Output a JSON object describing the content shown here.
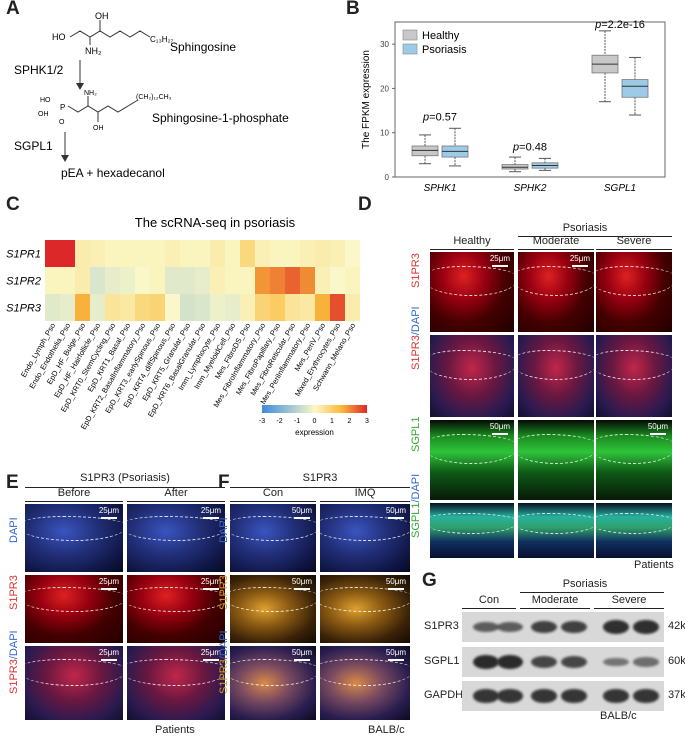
{
  "panels": {
    "A": "A",
    "B": "B",
    "C": "C",
    "D": "D",
    "E": "E",
    "F": "F",
    "G": "G"
  },
  "panelA": {
    "sphingosine": "Sphingosine",
    "enzyme1": "SPHK1/2",
    "s1p": "Sphingosine-1-phosphate",
    "enzyme2": "SGPL1",
    "products": "pEA + hexadecanol",
    "atoms": {
      "oh": "OH",
      "ho": "HO",
      "nh2": "NH₂",
      "c13": "C₁₃H₂₇",
      "ho2": "HO",
      "p": "P",
      "o": "O",
      "oh2": "OH",
      "nh2b": "NH₂",
      "c16": "(CH₂)₁₂CH₃",
      "oh3": "OH"
    }
  },
  "chart_data": {
    "type": "box",
    "title": "",
    "xlabel": "",
    "ylabel": "The FPKM expression",
    "ylim": [
      0,
      35
    ],
    "yticks": [
      "0",
      "10",
      "20",
      "30"
    ],
    "categories": [
      "SPHK1",
      "SPHK2",
      "SGPL1"
    ],
    "legend": [
      {
        "name": "Healthy",
        "color": "#c8c8c8"
      },
      {
        "name": "Psoriasis",
        "color": "#9ccbe8"
      }
    ],
    "series": [
      {
        "name": "Healthy",
        "color": "#c8c8c8",
        "boxes": [
          {
            "min": 3,
            "q1": 4.8,
            "median": 6,
            "q3": 7,
            "max": 9.5
          },
          {
            "min": 1.2,
            "q1": 1.8,
            "median": 2.2,
            "q3": 2.8,
            "max": 4.5
          },
          {
            "min": 17,
            "q1": 23.5,
            "median": 25.5,
            "q3": 27.5,
            "max": 33
          }
        ]
      },
      {
        "name": "Psoriasis",
        "color": "#9ccbe8",
        "boxes": [
          {
            "min": 2.5,
            "q1": 4.5,
            "median": 5.8,
            "q3": 7,
            "max": 11
          },
          {
            "min": 1.5,
            "q1": 2,
            "median": 2.6,
            "q3": 3.2,
            "max": 4.2
          },
          {
            "min": 14,
            "q1": 18,
            "median": 20.5,
            "q3": 22,
            "max": 27
          }
        ]
      }
    ],
    "pvalues": [
      "p=0.57",
      "p=0.48",
      "p=2.2e-16"
    ],
    "p_italic": "p",
    "p_rest": [
      "=0.57",
      "=0.48",
      "=2.2e-16"
    ]
  },
  "heatmap": {
    "title": "The scRNA-seq in psoriasis",
    "rows": [
      "S1PR1",
      "S1PR2",
      "S1PR3"
    ],
    "columns": [
      "Endo_Lymph_Pso",
      "Endo_Endothelia_Pso",
      "EpD_HF_Bulge_Pso",
      "EpD_HF_Hairfollicle_Pso",
      "EpD_KRT0_StemCycling_Pso",
      "EpD_KRT1_Basal_Pso",
      "EpD_KRT2_BasalInflammatory_Pso",
      "EpD_KRT3_earlySpinous_Pso",
      "EpD_KRT4_diffSpinous_Pso",
      "EpD_KRT5_Granular_Pso",
      "EpD_KRT6_BasalGranular_Pso",
      "Imm_Lymphocyte_Pso",
      "Imm_MyeloidCell_Pso",
      "Mes_FibroDS_Pso",
      "Mes_FibroInflammatory_Pso",
      "Mes_FibroPapillary_Pso",
      "Mes_FibroReticular_Pso",
      "Mes_PeriInflammatory_Pso",
      "Mes_PeriV_Pso",
      "Mixed_Erythrocytes_Pso",
      "Schwann_Melano_Pso"
    ],
    "values": [
      [
        3.0,
        3.4,
        0.3,
        0.2,
        0.1,
        0.1,
        0.1,
        0.1,
        0.2,
        0.1,
        0.1,
        0.3,
        0.1,
        0.8,
        0.2,
        0.1,
        0.1,
        0.2,
        0.3,
        0.2,
        0.0
      ],
      [
        0.1,
        0.1,
        0.3,
        -0.5,
        -0.3,
        -0.2,
        0.0,
        0.1,
        -0.4,
        -0.4,
        -0.3,
        0.2,
        0.1,
        0.1,
        1.9,
        2.1,
        2.4,
        2.0,
        0.2,
        0.0,
        0.1
      ],
      [
        -0.4,
        -0.3,
        1.6,
        -0.3,
        0.5,
        0.4,
        0.8,
        0.9,
        0.0,
        -0.6,
        -0.5,
        -0.2,
        -0.3,
        0.2,
        0.9,
        1.1,
        0.5,
        0.4,
        1.6,
        2.6,
        0.3
      ]
    ],
    "legend_title": "expression",
    "legend_ticks": [
      "-3",
      "-2",
      "-1",
      "0",
      "1",
      "2",
      "3"
    ]
  },
  "panelD": {
    "groups": {
      "healthy": "Healthy",
      "psoriasis": "Psoriasis",
      "moderate": "Moderate",
      "severe": "Severe"
    },
    "rowlabels": {
      "s1pr3": "S1PR3",
      "s1pr3_dapi_a": "S1PR3",
      "s1pr3_dapi_b": "/DAPI",
      "sgpl1": "SGPL1",
      "sgpl1_dapi_a": "SGPL1",
      "sgpl1_dapi_b": "/DAPI"
    },
    "scale25": "25μm",
    "scale50": "50μm",
    "footer": "Patients"
  },
  "panelE": {
    "title": "S1PR3 (Psoriasis)",
    "cols": [
      "Before",
      "After"
    ],
    "rowlabels": {
      "dapi": "DAPI",
      "s1pr3": "S1PR3",
      "s1pr3_dapi_a": "S1PR3",
      "s1pr3_dapi_b": "/DAPI"
    },
    "scale": "25μm",
    "footer": "Patients"
  },
  "panelF": {
    "title": "S1PR3",
    "cols": [
      "Con",
      "IMQ"
    ],
    "rowlabels": {
      "dapi": "DAPI",
      "s1pr3": "S1PR3",
      "s1pr3_dapi_a": "S1PR3",
      "s1pr3_dapi_b": "/DAPI"
    },
    "scale": "50μm",
    "footer": "BALB/c"
  },
  "panelG": {
    "groups": {
      "con": "Con",
      "psoriasis": "Psoriasis",
      "moderate": "Moderate",
      "severe": "Severe"
    },
    "rows": [
      {
        "name": "S1PR3",
        "kd": "42kD",
        "intensity": [
          0.55,
          0.55,
          0.8,
          0.8,
          0.95,
          0.95
        ]
      },
      {
        "name": "SGPL1",
        "kd": "60kD",
        "intensity": [
          1.0,
          1.0,
          0.75,
          0.75,
          0.35,
          0.4
        ]
      },
      {
        "name": "GAPDH",
        "kd": "37kD",
        "intensity": [
          0.9,
          0.9,
          0.9,
          0.9,
          0.9,
          0.9
        ]
      }
    ],
    "footer": "BALB/c"
  }
}
